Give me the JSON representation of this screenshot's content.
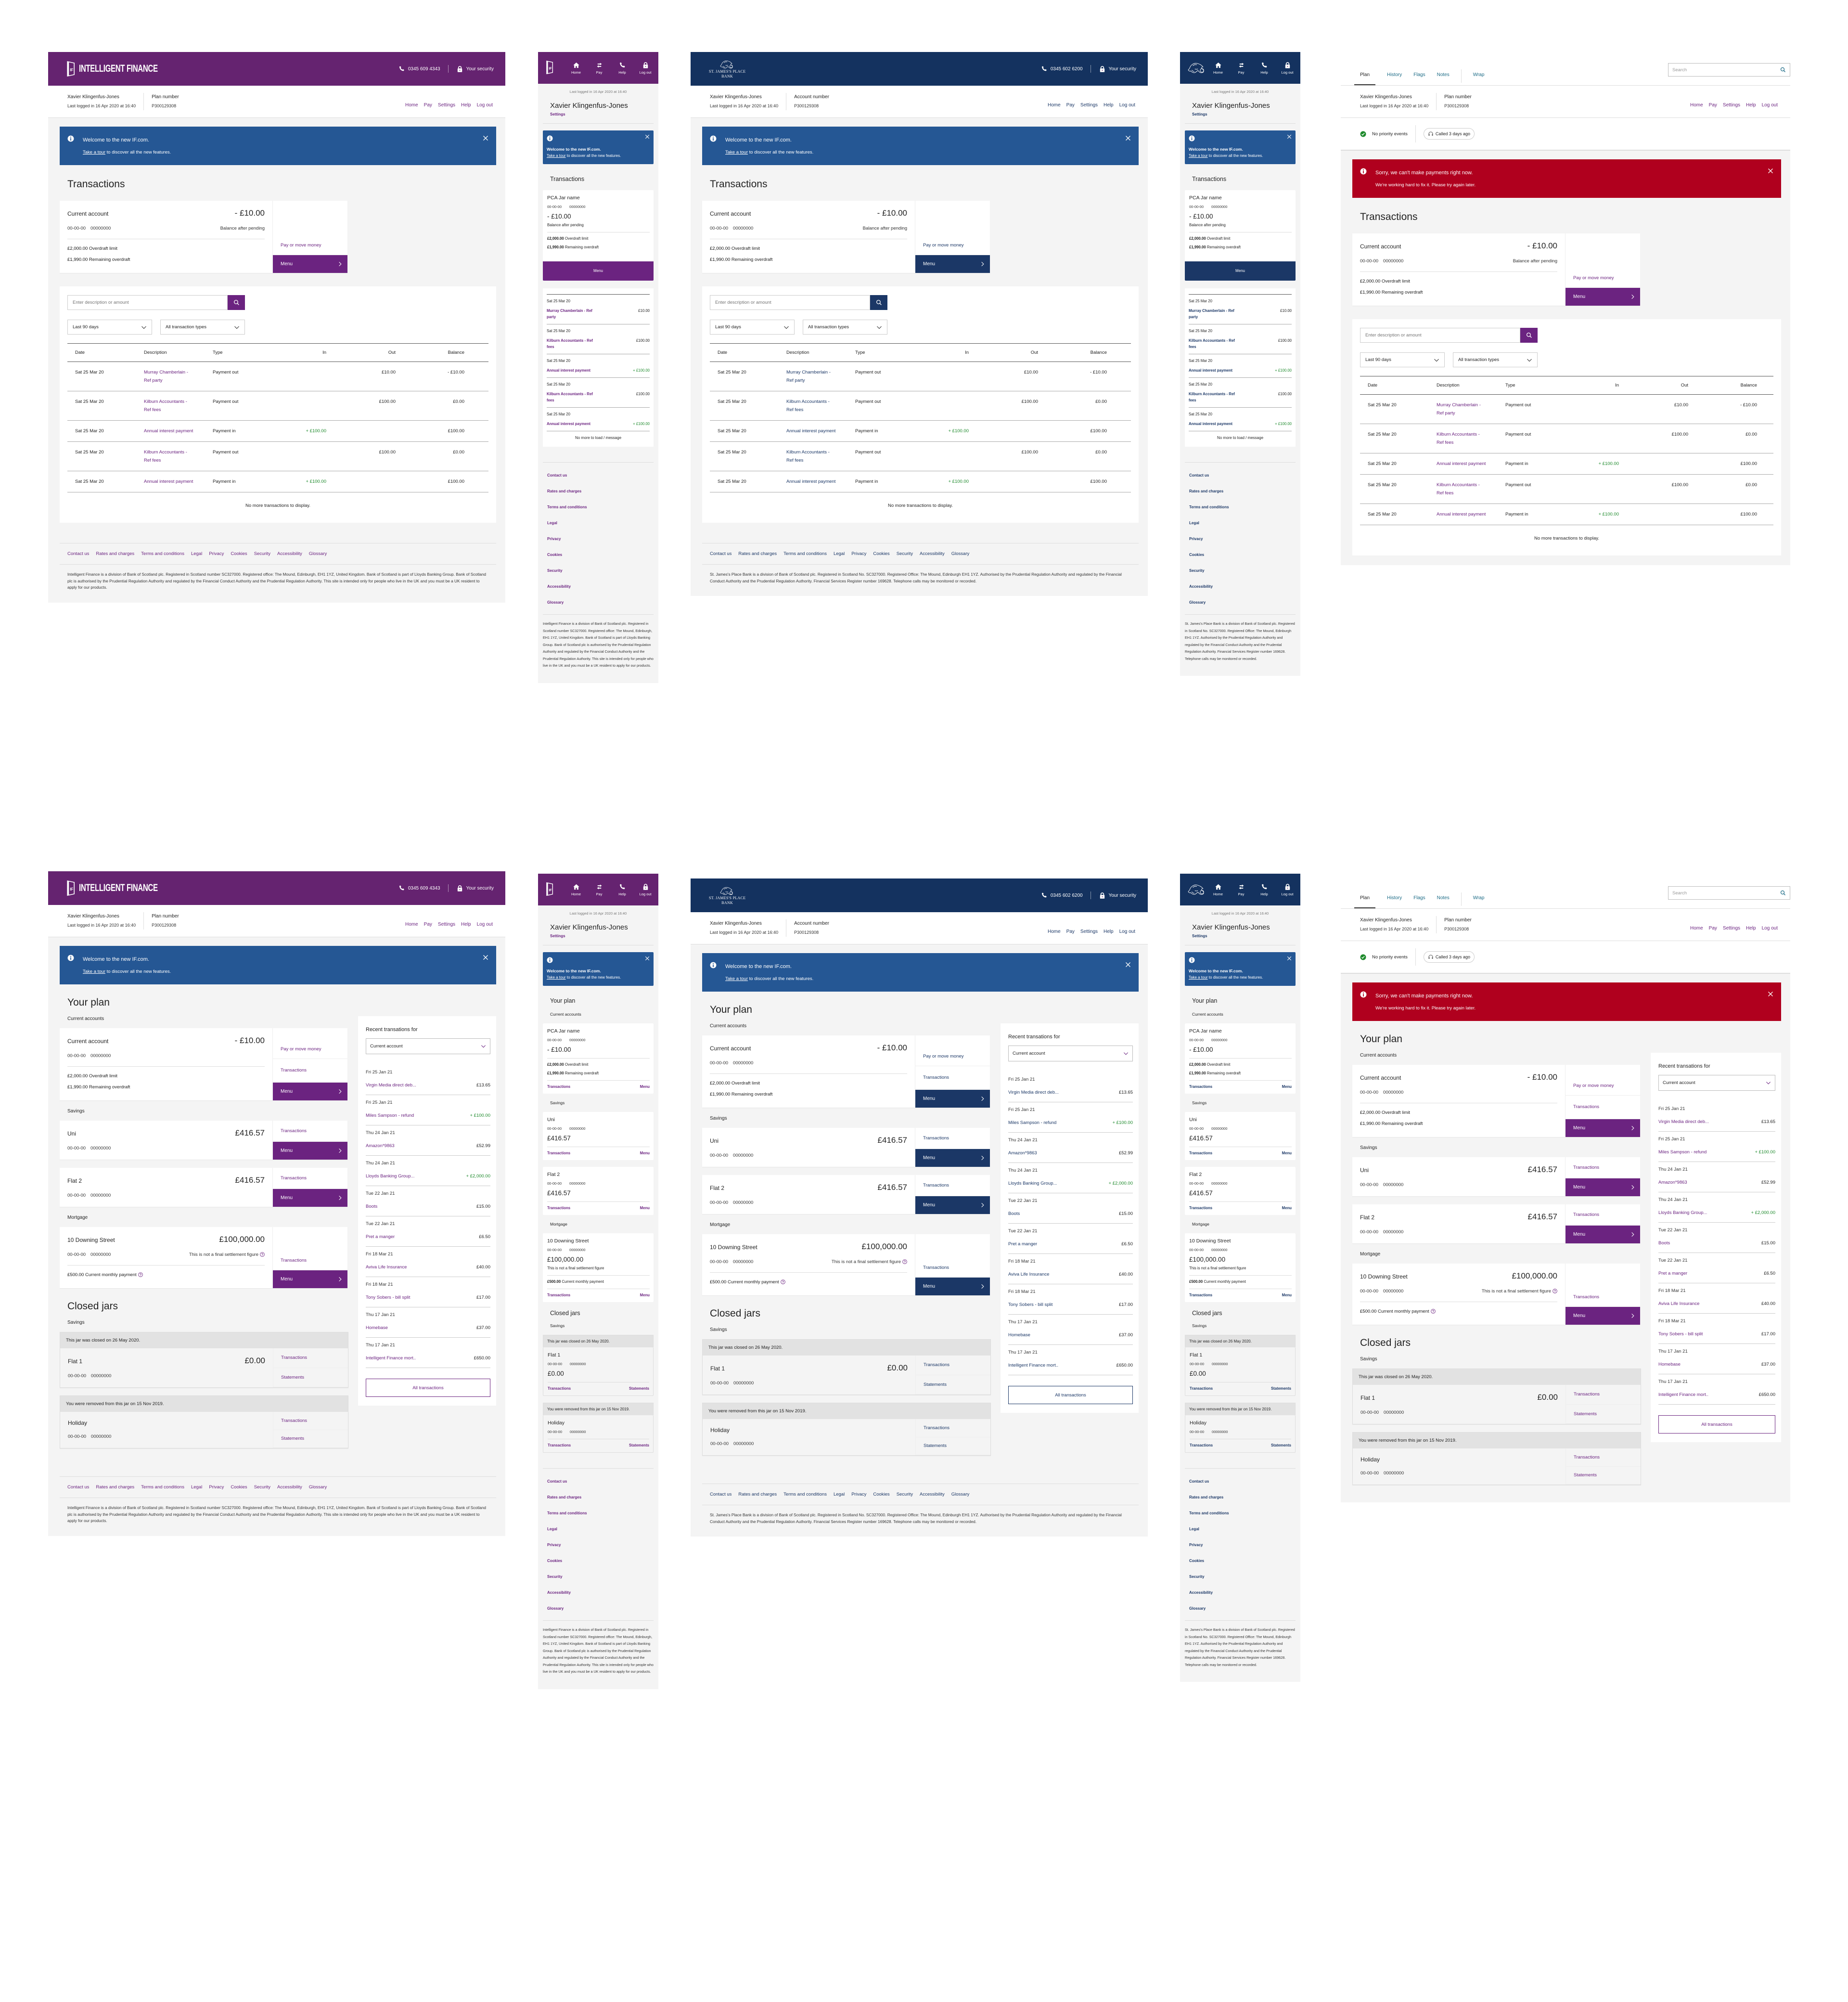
{
  "brands": {
    "if": {
      "name": "INTELLIGENT FINANCE",
      "logo_text": "IF",
      "phone": "0345 609 4343",
      "security": "Your security",
      "id_label": "Plan number",
      "legal": "Intelligent Finance is a division of Bank of Scotland plc. Registered in Scotland number SC327000. Registered office: The Mound, Edinburgh, EH1 1YZ, United Kingdom. Bank of Scotland is part of Lloyds Banking Group. Bank of Scotland plc is authorised by the Prudential Regulation Authority and regulated by the Financial Conduct Authority and the Prudential Regulation Authority. This site is intended only for people who live in the UK and you must be a UK resident to apply for our products.",
      "colors": {
        "header": "#652370",
        "link": "#6b2380"
      }
    },
    "sjp": {
      "name_line1": "ST. JAMES'S PLACE",
      "name_line2": "BANK",
      "phone": "0345 602 6200",
      "security": "Your security",
      "id_label": "Account number",
      "legal": "St. James's Place Bank is a division of Bank of Scotland plc. Registered in Scotland No. SC327000. Registered Office: The Mound, Edinburgh EH1 1YZ. Authorised by the Prudential Regulation Authority and regulated by the Financial Conduct Authority and the Prudential Regulation Authority. Financial Services Register number 169628. Telephone calls may be monitored or recorded.",
      "colors": {
        "header": "#14325f",
        "link": "#1b3766"
      }
    }
  },
  "user": {
    "name": "Xavier Klingenfus-Jones",
    "last_logged": "Last logged in 16 Apr 2020 at 16:40",
    "plan_number": "P300129308"
  },
  "nav": [
    "Home",
    "Pay",
    "Settings",
    "Help",
    "Log out"
  ],
  "mobile_nav": [
    {
      "label": "Home",
      "icon": "home-icon"
    },
    {
      "label": "Pay",
      "icon": "transfer-arrows-icon"
    },
    {
      "label": "Help",
      "icon": "phone-icon"
    },
    {
      "label": "Log out",
      "icon": "lock-icon"
    }
  ],
  "settings_link": "Settings",
  "welcome_banner": {
    "title": "Welcome to the new IF.com.",
    "link": "Take a tour",
    "rest": " to discover all the new features.",
    "color": "#255794"
  },
  "error_banner": {
    "title": "Sorry, we can't make payments right now.",
    "body": "We're working hard to fix it. Please try again later.",
    "color": "#b0001e"
  },
  "agent": {
    "tabs": [
      "Plan",
      "History",
      "Flags",
      "Notes",
      "Wrap"
    ],
    "active_tab": "Plan",
    "search_placeholder": "Search",
    "no_priority": "No priority events",
    "called": "Called 3 days ago"
  },
  "transactions_page": {
    "title": "Transactions",
    "account": {
      "name": "Current account",
      "mobile_name": "PCA Jar name",
      "sort_code": "00-00-00",
      "number": "00000000",
      "balance": "- £10.00",
      "balance_note": "Balance after pending",
      "details": [
        {
          "amount": "£2,000.00",
          "label": "Overdraft limit"
        },
        {
          "amount": "£1,990.00",
          "label": "Remaining overdraft"
        }
      ],
      "pay_link": "Pay or move money",
      "menu": "Menu"
    },
    "search_placeholder": "Enter description or amount",
    "filters": [
      "Last 90 days",
      "All transaction types"
    ],
    "columns": [
      "Date",
      "Description",
      "Type",
      "In",
      "Out",
      "Balance"
    ],
    "rows": [
      {
        "date": "Sat 25 Mar 20",
        "desc": "Murray Chamberlain - Ref party",
        "type": "Payment out",
        "in": "",
        "out": "£10.00",
        "balance": "- £10.00"
      },
      {
        "date": "Sat 25 Mar 20",
        "desc": "Kilburn Accountants - Ref fees",
        "type": "Payment out",
        "in": "",
        "out": "£100.00",
        "balance": "£0.00"
      },
      {
        "date": "Sat 25 Mar 20",
        "desc": "Annual interest payment",
        "type": "Payment in",
        "in": "+ £100.00",
        "out": "",
        "balance": "£100.00"
      },
      {
        "date": "Sat 25 Mar 20",
        "desc": "Kilburn Accountants - Ref fees",
        "type": "Payment out",
        "in": "",
        "out": "£100.00",
        "balance": "£0.00"
      },
      {
        "date": "Sat 25 Mar 20",
        "desc": "Annual interest payment",
        "type": "Payment in",
        "in": "+ £100.00",
        "out": "",
        "balance": "£100.00"
      }
    ],
    "end_desktop": "No more transactions to display.",
    "end_mobile": "No more to load / message"
  },
  "plan_page": {
    "title": "Your plan",
    "sections": [
      {
        "label": "Current accounts",
        "accounts": [
          {
            "name": "Current account",
            "mobile_name": "PCA Jar name",
            "sort_code": "00-00-00",
            "number": "00000000",
            "balance": "- £10.00",
            "details": [
              {
                "amount": "£2,000.00",
                "label": "Overdraft limit"
              },
              {
                "amount": "£1,990.00",
                "label": "Remaining overdraft"
              }
            ],
            "actions": [
              "Pay or move money",
              "Transactions",
              "Menu"
            ]
          }
        ]
      },
      {
        "label": "Savings",
        "accounts": [
          {
            "name": "Uni",
            "sort_code": "00-00-00",
            "number": "00000000",
            "balance": "£416.57",
            "details": [],
            "actions": [
              "Transactions",
              "Menu"
            ]
          },
          {
            "name": "Flat 2",
            "sort_code": "00-00-00",
            "number": "00000000",
            "balance": "£416.57",
            "details": [],
            "actions": [
              "Transactions",
              "Menu"
            ]
          }
        ]
      },
      {
        "label": "Mortgage",
        "accounts": [
          {
            "name": "10 Downing Street",
            "sort_code": "00-00-00",
            "number": "00000000",
            "balance": "£100,000.00",
            "note": "This is not a final settlement figure",
            "details": [
              {
                "amount": "£500.00",
                "label": "Current monthly payment",
                "help": true
              }
            ],
            "actions": [
              "Transactions",
              "Menu"
            ]
          }
        ]
      }
    ],
    "closed": {
      "title": "Closed jars",
      "label": "Savings",
      "jars": [
        {
          "notice": "This jar was closed on 26 May 2020.",
          "name": "Flat 1",
          "sort_code": "00-00-00",
          "number": "00000000",
          "balance": "£0.00",
          "actions": [
            "Transactions",
            "Statements"
          ]
        },
        {
          "notice": "You were removed from this jar on 15 Nov 2019.",
          "name": "Holiday",
          "sort_code": "00-00-00",
          "number": "00000000",
          "balance": "",
          "actions": [
            "Transactions",
            "Statements"
          ]
        }
      ]
    },
    "recent": {
      "title": "Recent transations for",
      "selected": "Current account",
      "items": [
        {
          "date": "Fri 25 Jan 21",
          "desc": "Virgin Media direct deb...",
          "amount": "£13.65",
          "credit": false
        },
        {
          "date": "Fri 25 Jan 21",
          "desc": "Miles Sampson - refund",
          "amount": "+ £100.00",
          "credit": true
        },
        {
          "date": "Thu 24 Jan 21",
          "desc": "Amazon*9863",
          "amount": "£52.99",
          "credit": false
        },
        {
          "date": "Thu 24 Jan 21",
          "desc": "Lloyds Banking Group...",
          "amount": "+ £2,000.00",
          "credit": true
        },
        {
          "date": "Tue 22 Jan 21",
          "desc": "Boots",
          "amount": "£15.00",
          "credit": false
        },
        {
          "date": "Tue 22 Jan 21",
          "desc": "Pret a manger",
          "amount": "£6.50",
          "credit": false
        },
        {
          "date": "Fri 18 Mar 21",
          "desc": "Aviva Life Insurance",
          "amount": "£40.00",
          "credit": false
        },
        {
          "date": "Fri 18 Mar 21",
          "desc": "Tony Sobers - bill split",
          "amount": "£17.00",
          "credit": false
        },
        {
          "date": "Thu 17 Jan 21",
          "desc": "Homebase",
          "amount": "£37.00",
          "credit": false
        },
        {
          "date": "Thu 17 Jan 21",
          "desc": "Intelligent Finance mort..",
          "amount": "£650.00",
          "credit": false
        }
      ],
      "all_button": "All transactions"
    }
  },
  "footer_links": [
    "Contact us",
    "Rates and charges",
    "Terms and conditions",
    "Legal",
    "Privacy",
    "Cookies",
    "Security",
    "Accessibility",
    "Glossary"
  ],
  "status_colors": {
    "credit": "#1e8a2c",
    "ok": "#1e8a2c"
  }
}
